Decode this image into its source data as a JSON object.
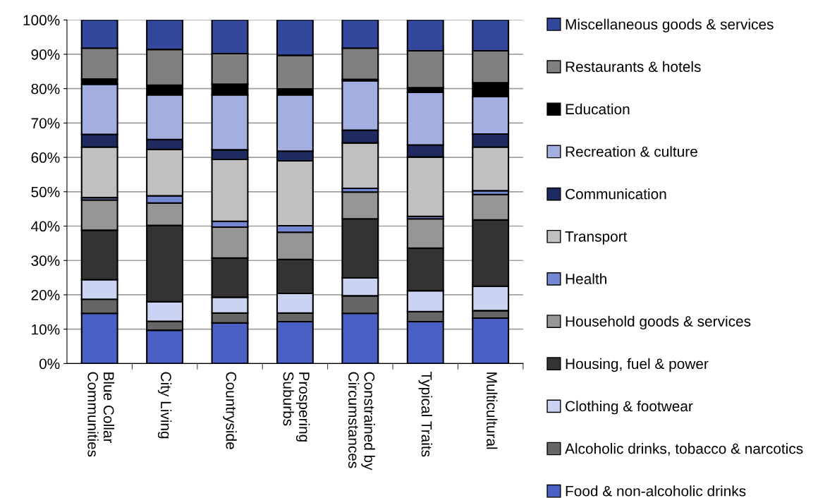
{
  "chart_data": {
    "type": "bar",
    "stacked": true,
    "categories": [
      "Blue Collar\nCommunities",
      "City Living",
      "Countryside",
      "Prospering\nSuburbs",
      "Constrained by\nCircumstances",
      "Typical Traits",
      "Multicultural"
    ],
    "series": [
      {
        "name": "Food & non-alcoholic drinks",
        "color": "#4a60c4",
        "values": [
          14.6,
          9.7,
          11.8,
          12.2,
          14.6,
          12.2,
          13.2
        ]
      },
      {
        "name": "Alcoholic drinks, tobacco & narcotics",
        "color": "#666666",
        "values": [
          4.1,
          2.6,
          2.9,
          2.5,
          5.1,
          2.9,
          2.2
        ]
      },
      {
        "name": "Clothing & footwear",
        "color": "#cbd3f2",
        "values": [
          5.7,
          5.7,
          4.6,
          5.7,
          5.2,
          6.1,
          7.1
        ]
      },
      {
        "name": "Housing, fuel & power",
        "color": "#333333",
        "values": [
          14.4,
          22.2,
          11.4,
          9.9,
          17.2,
          12.4,
          19.3
        ]
      },
      {
        "name": "Household goods & services",
        "color": "#969696",
        "values": [
          8.8,
          6.5,
          9.0,
          7.9,
          7.8,
          8.5,
          7.4
        ]
      },
      {
        "name": "Health",
        "color": "#7487d3",
        "values": [
          0.7,
          2.1,
          1.7,
          1.9,
          1.1,
          0.7,
          1.1
        ]
      },
      {
        "name": "Transport",
        "color": "#c0c0c0",
        "values": [
          14.7,
          13.5,
          18.0,
          18.9,
          13.2,
          17.3,
          12.7
        ]
      },
      {
        "name": "Communication",
        "color": "#1f2b60",
        "values": [
          3.7,
          2.9,
          2.8,
          2.8,
          3.7,
          3.5,
          3.8
        ]
      },
      {
        "name": "Recreation & culture",
        "color": "#a3afe0",
        "values": [
          14.6,
          13.0,
          16.0,
          16.4,
          14.4,
          15.3,
          10.9
        ]
      },
      {
        "name": "Education",
        "color": "#000000",
        "values": [
          1.5,
          2.8,
          3.1,
          1.7,
          0.4,
          1.4,
          4.0
        ]
      },
      {
        "name": "Restaurants & hotels",
        "color": "#808080",
        "values": [
          9.0,
          10.4,
          8.9,
          9.8,
          9.1,
          10.7,
          9.3
        ]
      },
      {
        "name": "Miscellaneous goods & services",
        "color": "#33489c",
        "values": [
          8.2,
          8.6,
          9.8,
          10.3,
          8.2,
          9.0,
          9.0
        ]
      }
    ],
    "ylim": [
      0,
      100
    ],
    "yticks": [
      {
        "value": 0,
        "label": "0%"
      },
      {
        "value": 10,
        "label": "10%"
      },
      {
        "value": 20,
        "label": "20%"
      },
      {
        "value": 30,
        "label": "30%"
      },
      {
        "value": 40,
        "label": "40%"
      },
      {
        "value": 50,
        "label": "50%"
      },
      {
        "value": 60,
        "label": "60%"
      },
      {
        "value": 70,
        "label": "70%"
      },
      {
        "value": 80,
        "label": "80%"
      },
      {
        "value": 90,
        "label": "90%"
      },
      {
        "value": 100,
        "label": "100%"
      }
    ],
    "grid": "y",
    "legend": "right"
  }
}
